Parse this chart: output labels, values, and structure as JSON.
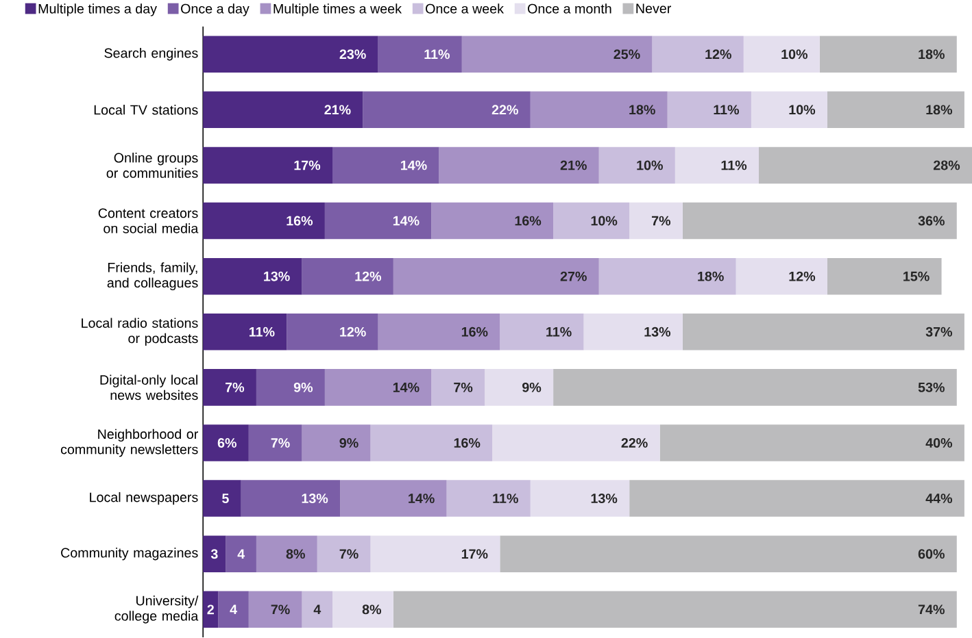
{
  "chart_data": {
    "type": "bar",
    "orientation": "horizontal",
    "stacked": true,
    "legend": "top left",
    "categories": [
      "Search engines",
      "Local TV stations",
      "Online groups or communities",
      "Content creators on social media",
      "Friends, family, and colleagues",
      "Local radio stations or podcasts",
      "Digital-only local news websites",
      "Neighborhood or community newsletters",
      "Local newspapers",
      "Community magazines",
      "University/ college media"
    ],
    "series": [
      {
        "name": "Multiple times a day",
        "color": "#4e2a84",
        "values": [
          23,
          21,
          17,
          16,
          13,
          11,
          7,
          6,
          5,
          3,
          2
        ],
        "value_labels": [
          "23%",
          "21%",
          "17%",
          "16%",
          "13%",
          "11%",
          "7%",
          "6%",
          "5",
          "3",
          "2"
        ]
      },
      {
        "name": "Once a day",
        "color": "#7b5ea7",
        "values": [
          11,
          22,
          14,
          14,
          12,
          12,
          9,
          7,
          13,
          4,
          4
        ],
        "value_labels": [
          "11%",
          "22%",
          "14%",
          "14%",
          "12%",
          "12%",
          "9%",
          "7%",
          "13%",
          "4",
          "4"
        ]
      },
      {
        "name": "Multiple times a week",
        "color": "#a691c5",
        "values": [
          25,
          18,
          21,
          16,
          27,
          16,
          14,
          9,
          14,
          8,
          7
        ],
        "value_labels": [
          "25%",
          "18%",
          "21%",
          "16%",
          "27%",
          "16%",
          "14%",
          "9%",
          "14%",
          "8%",
          "7%"
        ]
      },
      {
        "name": "Once a week",
        "color": "#c9bedd",
        "values": [
          12,
          11,
          10,
          10,
          18,
          11,
          7,
          16,
          11,
          7,
          4
        ],
        "value_labels": [
          "12%",
          "11%",
          "10%",
          "10%",
          "18%",
          "11%",
          "7%",
          "16%",
          "11%",
          "7%",
          "4"
        ]
      },
      {
        "name": "Once a month",
        "color": "#e4dfee",
        "values": [
          10,
          10,
          11,
          7,
          12,
          13,
          9,
          22,
          13,
          17,
          8
        ],
        "value_labels": [
          "10%",
          "10%",
          "11%",
          "7%",
          "12%",
          "13%",
          "9%",
          "22%",
          "13%",
          "17%",
          "8%"
        ]
      },
      {
        "name": "Never",
        "color": "#bbbbbd",
        "values": [
          18,
          18,
          28,
          36,
          15,
          37,
          53,
          40,
          44,
          60,
          74
        ],
        "value_labels": [
          "18%",
          "18%",
          "28%",
          "36%",
          "15%",
          "37%",
          "53%",
          "40%",
          "44%",
          "60%",
          "74%"
        ]
      }
    ]
  }
}
